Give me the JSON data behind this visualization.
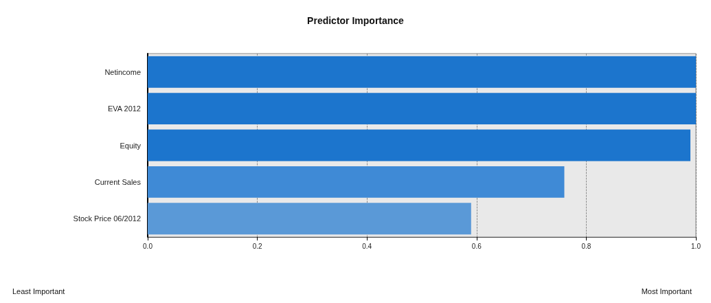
{
  "chart_data": {
    "type": "bar",
    "orientation": "horizontal",
    "title": "Predictor Importance",
    "categories": [
      "Netincome",
      "EVA 2012",
      "Equity",
      "Current Sales",
      "Stock Price 06/2012"
    ],
    "values": [
      1.0,
      1.0,
      0.99,
      0.76,
      0.59
    ],
    "colors": [
      "#1c75cd",
      "#1c75cd",
      "#1c75cd",
      "#3f8ad6",
      "#5a99d7"
    ],
    "xlim": [
      0,
      1
    ],
    "xticks": [
      {
        "value": 0,
        "label": "0.0"
      },
      {
        "value": 0.2,
        "label": "0.2"
      },
      {
        "value": 0.4,
        "label": "0.4"
      },
      {
        "value": 0.6,
        "label": "0.6"
      },
      {
        "value": 0.8,
        "label": "0.8"
      },
      {
        "value": 1,
        "label": "1.0"
      }
    ],
    "grid": "x",
    "annotations": [
      "Least Important",
      "Most Important"
    ]
  }
}
